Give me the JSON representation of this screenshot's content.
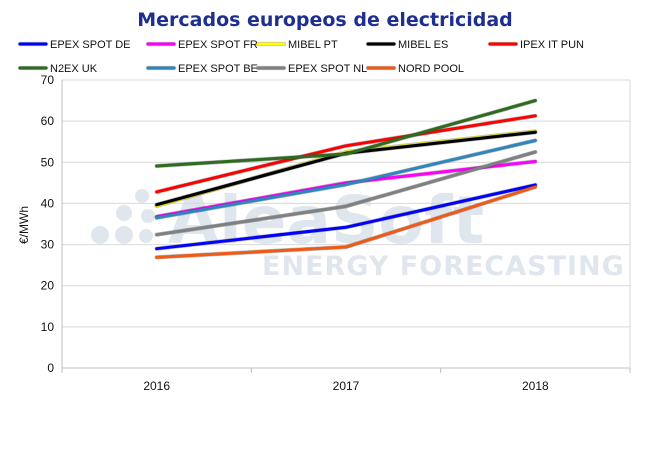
{
  "watermark": {
    "brand": "AleaSoft",
    "tagline": "ENERGY FORECASTING"
  },
  "chart_data": {
    "type": "line",
    "title": "Mercados europeos de electricidad",
    "xlabel": "",
    "ylabel": "€/MWh",
    "categories": [
      "2016",
      "2017",
      "2018"
    ],
    "ylim": [
      0,
      70
    ],
    "yticks": [
      0,
      10,
      20,
      30,
      40,
      50,
      60,
      70
    ],
    "grid": true,
    "legend_position": "top",
    "series": [
      {
        "name": "EPEX SPOT DE",
        "color": "#0000ff",
        "values": [
          29.0,
          34.2,
          44.5
        ]
      },
      {
        "name": "EPEX SPOT FR",
        "color": "#ff00ff",
        "values": [
          36.8,
          45.0,
          50.2
        ]
      },
      {
        "name": "MIBEL PT",
        "color": "#ffff00",
        "values": [
          39.4,
          52.5,
          57.5
        ]
      },
      {
        "name": "MIBEL ES",
        "color": "#000000",
        "values": [
          39.7,
          52.2,
          57.3
        ]
      },
      {
        "name": "IPEX IT PUN",
        "color": "#ff0000",
        "values": [
          42.8,
          54.0,
          61.3
        ]
      },
      {
        "name": "N2EX UK",
        "color": "#2e6b1e",
        "values": [
          49.1,
          52.0,
          65.0
        ]
      },
      {
        "name": "EPEX SPOT BE",
        "color": "#2e86c1",
        "values": [
          36.5,
          44.6,
          55.3
        ]
      },
      {
        "name": "EPEX SPOT NL",
        "color": "#808080",
        "values": [
          32.4,
          39.3,
          52.5
        ]
      },
      {
        "name": "NORD POOL",
        "color": "#f05a14",
        "values": [
          26.9,
          29.4,
          44.0
        ]
      }
    ]
  }
}
